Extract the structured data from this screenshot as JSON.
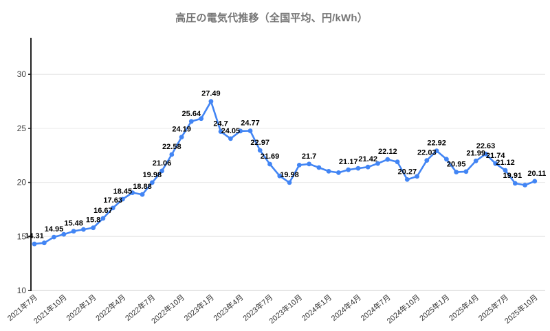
{
  "chart_data": {
    "type": "line",
    "title": "高圧の電気代推移（全国平均、円/kWh）",
    "legend": "none",
    "grid": true,
    "y_axis": {
      "ticks": [
        "10",
        "15",
        "20",
        "25",
        "30"
      ],
      "min": 10,
      "max": 33.4
    },
    "x_tick_interval": 3,
    "x_tick_labels": [
      "2021年7月",
      "2021年10月",
      "2022年1月",
      "2022年4月",
      "2022年7月",
      "2022年10月",
      "2023年1月",
      "2023年4月",
      "2023年7月",
      "2023年10月",
      "2024年1月",
      "2024年4月",
      "2024年7月",
      "2024年10月",
      "2025年1月",
      "2025年4月",
      "2025年7月",
      "2025年10月"
    ],
    "categories": [
      "2021年7月",
      "2021年8月",
      "2021年9月",
      "2021年10月",
      "2021年11月",
      "2021年12月",
      "2022年1月",
      "2022年2月",
      "2022年3月",
      "2022年4月",
      "2022年5月",
      "2022年6月",
      "2022年7月",
      "2022年8月",
      "2022年9月",
      "2022年10月",
      "2022年11月",
      "2022年12月",
      "2023年1月",
      "2023年2月",
      "2023年3月",
      "2023年4月",
      "2023年5月",
      "2023年6月",
      "2023年7月",
      "2023年8月",
      "2023年9月",
      "2023年10月",
      "2023年11月",
      "2023年12月",
      "2024年1月",
      "2024年2月",
      "2024年3月",
      "2024年4月",
      "2024年5月",
      "2024年6月",
      "2024年7月",
      "2024年8月",
      "2024年9月",
      "2024年10月",
      "2024年11月",
      "2024年12月",
      "2025年1月",
      "2025年2月",
      "2025年3月",
      "2025年4月",
      "2025年5月",
      "2025年6月",
      "2025年7月",
      "2025年8月",
      "2025年9月",
      "2025年10月"
    ],
    "values": [
      14.31,
      14.4,
      14.95,
      15.2,
      15.48,
      15.65,
      15.8,
      16.67,
      17.63,
      18.45,
      19.05,
      18.88,
      19.98,
      21.06,
      22.58,
      24.19,
      25.64,
      25.9,
      27.49,
      24.7,
      24.05,
      24.75,
      24.77,
      22.97,
      21.69,
      20.6,
      19.98,
      21.6,
      21.7,
      21.37,
      21.03,
      20.9,
      21.17,
      21.3,
      21.42,
      21.75,
      22.12,
      21.9,
      20.27,
      20.55,
      22.03,
      22.92,
      22.15,
      20.95,
      21.0,
      21.99,
      22.63,
      21.74,
      21.12,
      19.91,
      19.75,
      20.11
    ],
    "point_labels": [
      "14.31",
      null,
      "14.95",
      null,
      "15.48",
      null,
      "15.8",
      "16.67",
      "17.63",
      "18.45",
      null,
      "18.88",
      "19.98",
      "21.06",
      "22.58",
      "24.19",
      "25.64",
      null,
      "27.49",
      "24.7",
      "24.05",
      null,
      "24.77",
      "22.97",
      "21.69",
      null,
      "19.98",
      null,
      "21.7",
      null,
      null,
      null,
      "21.17",
      null,
      "21.42",
      null,
      "22.12",
      null,
      "20.27",
      null,
      "22.03",
      "22.92",
      null,
      "20.95",
      null,
      "21.99",
      "22.63",
      "21.74",
      "21.12",
      "19.91",
      null,
      "20.11"
    ],
    "label_dx": {
      "49": -4,
      "51": 3
    },
    "colors": {
      "line": "#4285f4",
      "marker": "#4285f4",
      "title": "#757575",
      "data_label": "#000000",
      "axis_line": "#212121",
      "gridline": "#e6e6e6",
      "baseline": "#cccccc",
      "y_tick_label": "#424242",
      "x_tick_label": "#333333",
      "background": "#ffffff"
    }
  }
}
